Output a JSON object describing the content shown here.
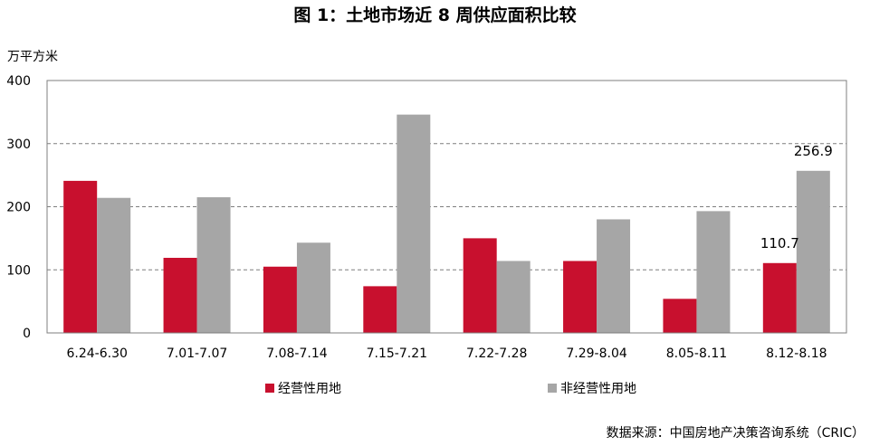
{
  "chart_data": {
    "type": "bar",
    "title": "图 1：土地市场近 8 周供应面积比较",
    "ylabel": "万平方米",
    "xlabel": "",
    "ylim": [
      0,
      400
    ],
    "yticks": [
      0,
      100,
      200,
      300,
      400
    ],
    "grid": true,
    "legend_position": "bottom",
    "categories": [
      "6.24-6.30",
      "7.01-7.07",
      "7.08-7.14",
      "7.15-7.21",
      "7.22-7.28",
      "7.29-8.04",
      "8.05-8.11",
      "8.12-8.18"
    ],
    "series": [
      {
        "name": "经营性用地",
        "color": "#c8102e",
        "values": [
          241,
          119,
          105,
          74,
          150,
          114,
          54,
          110.7
        ]
      },
      {
        "name": "非经营性用地",
        "color": "#a6a6a6",
        "values": [
          214,
          215,
          143,
          346,
          114,
          180,
          193,
          256.9
        ]
      }
    ],
    "data_labels": [
      {
        "series": 0,
        "index": 7,
        "text": "110.7"
      },
      {
        "series": 1,
        "index": 7,
        "text": "256.9"
      }
    ]
  },
  "source": "数据来源：中国房地产决策咨询系统（CRIC）"
}
